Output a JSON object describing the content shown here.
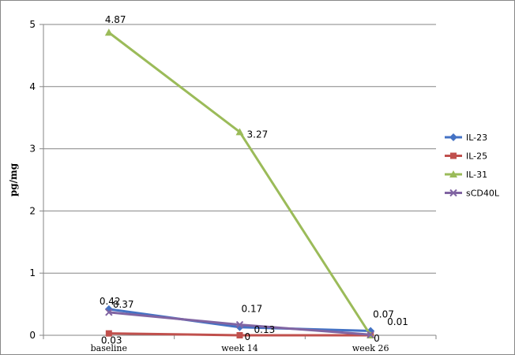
{
  "chart_data": {
    "type": "line",
    "title": "",
    "xlabel": "",
    "ylabel": "pg/mg",
    "ylim": [
      0,
      5
    ],
    "yticks": [
      0,
      1,
      2,
      3,
      4,
      5
    ],
    "grid": "horizontal",
    "legend_position": "right",
    "categories": [
      "baseline",
      "week 14",
      "week 26"
    ],
    "series": [
      {
        "name": "IL-23",
        "values": [
          0.42,
          0.13,
          0.07
        ],
        "color": "#4472C4",
        "marker": "diamond"
      },
      {
        "name": "IL-25",
        "values": [
          0.03,
          0,
          0
        ],
        "color": "#C0504D",
        "marker": "square"
      },
      {
        "name": "IL-31",
        "values": [
          4.87,
          3.27,
          0
        ],
        "color": "#9BBB59",
        "marker": "triangle"
      },
      {
        "name": "sCD40L",
        "values": [
          0.37,
          0.17,
          0.01
        ],
        "color": "#8064A2",
        "marker": "x"
      }
    ],
    "data_labels": [
      {
        "text": "4.87",
        "category": 0,
        "value": 4.87
      },
      {
        "text": "3.27",
        "category": 1,
        "value": 3.27
      },
      {
        "text": "0.42",
        "category": 0,
        "value": 0.42
      },
      {
        "text": "0.37",
        "category": 0,
        "value": 0.37
      },
      {
        "text": "0.03",
        "category": 0,
        "value": 0.03
      },
      {
        "text": "0.17",
        "category": 1,
        "value": 0.17
      },
      {
        "text": "0.13",
        "category": 1,
        "value": 0.13
      },
      {
        "text": "0",
        "category": 1,
        "value": 0
      },
      {
        "text": "0.07",
        "category": 2,
        "value": 0.07
      },
      {
        "text": "0.01",
        "category": 2,
        "value": 0.01
      },
      {
        "text": "0",
        "category": 2,
        "value": 0
      }
    ]
  }
}
